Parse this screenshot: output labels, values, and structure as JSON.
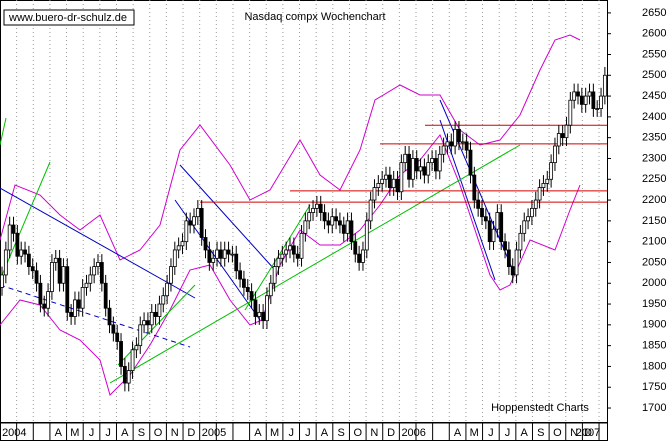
{
  "chart_data": {
    "type": "candlestick",
    "title": "Nasdaq compx Wochenchart",
    "source": "www.buero-dr-schulz.de",
    "credit": "Hoppenstedt Charts",
    "x_labels": [
      "2004",
      null,
      null,
      "A",
      "M",
      "J",
      "J",
      "A",
      "S",
      "O",
      "N",
      "D",
      "2005",
      null,
      null,
      "A",
      "M",
      "J",
      "J",
      "A",
      "S",
      "O",
      "N",
      "D",
      "2006",
      null,
      null,
      "A",
      "M",
      "J",
      "J",
      "A",
      "S",
      "O",
      "N",
      "D",
      "2007"
    ],
    "ylim": [
      1664,
      2681
    ],
    "yticks": [
      1700,
      1750,
      1800,
      1850,
      1900,
      1950,
      2000,
      2050,
      2100,
      2150,
      2200,
      2250,
      2300,
      2350,
      2400,
      2450,
      2500,
      2550,
      2600,
      2650
    ],
    "levels": [
      2380,
      2335,
      2222,
      2195
    ],
    "open": [
      1990,
      2020,
      2080,
      2140,
      2120,
      2065,
      2080,
      2070,
      2040,
      2030,
      2000,
      1950,
      1940,
      1980,
      2050,
      2060,
      2000,
      2040,
      1930,
      1920,
      1960,
      1940,
      1990,
      2000,
      2020,
      2040,
      2050,
      2000,
      1940,
      1900,
      1880,
      1860,
      1800,
      1760,
      1790,
      1840,
      1850,
      1900,
      1910,
      1900,
      1930,
      1920,
      1950,
      1970,
      2000,
      2040,
      2080,
      2090,
      2100,
      2150,
      2140,
      2160,
      2180,
      2110,
      2080,
      2050,
      2060,
      2080,
      2060,
      2080,
      2070,
      2070,
      2030,
      2010,
      1990,
      1980,
      1960,
      1920,
      1930,
      1910,
      1970,
      2000,
      2040,
      2060,
      2070,
      2080,
      2090,
      2070,
      2060,
      2120,
      2150,
      2170,
      2180,
      2190,
      2170,
      2150,
      2140,
      2160,
      2150,
      2140,
      2120,
      2150,
      2100,
      2070,
      2050,
      2080,
      2150,
      2200,
      2230,
      2240,
      2250,
      2260,
      2230,
      2250,
      2220,
      2290,
      2310,
      2250,
      2300,
      2270,
      2280,
      2260,
      2290,
      2300,
      2270,
      2310,
      2330,
      2340,
      2330,
      2370,
      2340,
      2340,
      2320,
      2260,
      2200,
      2180,
      2160,
      2150,
      2100,
      2130,
      2170,
      2100,
      2080,
      2040,
      2020,
      2080,
      2120,
      2150,
      2160,
      2180,
      2200,
      2230,
      2240,
      2250,
      2290,
      2330,
      2360,
      2350,
      2380,
      2440,
      2460,
      2450,
      2430,
      2450,
      2460,
      2420,
      2420,
      2450
    ],
    "high": [
      2040,
      2100,
      2160,
      2160,
      2140,
      2100,
      2100,
      2090,
      2060,
      2050,
      2020,
      1970,
      2000,
      2070,
      2080,
      2080,
      2060,
      2060,
      1950,
      1980,
      1980,
      2010,
      2020,
      2040,
      2060,
      2070,
      2070,
      2020,
      1960,
      1920,
      1900,
      1880,
      1820,
      1810,
      1860,
      1870,
      1920,
      1930,
      1930,
      1950,
      1950,
      1970,
      1990,
      2020,
      2060,
      2100,
      2110,
      2120,
      2170,
      2170,
      2180,
      2200,
      2200,
      2130,
      2100,
      2080,
      2100,
      2100,
      2100,
      2100,
      2090,
      2090,
      2050,
      2030,
      2010,
      2000,
      1980,
      1950,
      1950,
      1990,
      2020,
      2060,
      2080,
      2090,
      2100,
      2110,
      2110,
      2090,
      2140,
      2170,
      2190,
      2200,
      2210,
      2210,
      2190,
      2170,
      2180,
      2180,
      2170,
      2160,
      2170,
      2170,
      2120,
      2090,
      2100,
      2170,
      2220,
      2250,
      2260,
      2270,
      2280,
      2280,
      2270,
      2270,
      2310,
      2330,
      2330,
      2320,
      2320,
      2300,
      2300,
      2310,
      2320,
      2320,
      2330,
      2350,
      2360,
      2360,
      2390,
      2390,
      2360,
      2360,
      2340,
      2280,
      2220,
      2200,
      2180,
      2170,
      2150,
      2190,
      2190,
      2120,
      2100,
      2060,
      2100,
      2140,
      2170,
      2180,
      2200,
      2220,
      2250,
      2260,
      2270,
      2310,
      2350,
      2380,
      2380,
      2400,
      2460,
      2480,
      2480,
      2470,
      2470,
      2480,
      2480,
      2440,
      2470,
      2520
    ],
    "low": [
      1970,
      2000,
      2060,
      2100,
      2045,
      2045,
      2050,
      2020,
      2010,
      1980,
      1930,
      1920,
      1920,
      1960,
      2030,
      1980,
      1980,
      1910,
      1900,
      1900,
      1920,
      1920,
      1970,
      1980,
      2000,
      2020,
      1980,
      1920,
      1880,
      1860,
      1840,
      1780,
      1740,
      1740,
      1770,
      1820,
      1830,
      1880,
      1880,
      1880,
      1900,
      1900,
      1930,
      1950,
      1980,
      2020,
      2060,
      2070,
      2080,
      2120,
      2120,
      2140,
      2090,
      2060,
      2030,
      2030,
      2040,
      2040,
      2040,
      2050,
      2050,
      2010,
      1990,
      1970,
      1960,
      1940,
      1900,
      1900,
      1890,
      1890,
      1950,
      1980,
      2020,
      2040,
      2050,
      2060,
      2050,
      2040,
      2040,
      2100,
      2130,
      2150,
      2160,
      2150,
      2130,
      2120,
      2120,
      2130,
      2120,
      2100,
      2100,
      2080,
      2050,
      2030,
      2030,
      2060,
      2130,
      2180,
      2210,
      2220,
      2230,
      2210,
      2210,
      2200,
      2200,
      2270,
      2230,
      2230,
      2250,
      2250,
      2240,
      2240,
      2270,
      2250,
      2250,
      2290,
      2310,
      2310,
      2310,
      2320,
      2320,
      2300,
      2240,
      2180,
      2160,
      2140,
      2130,
      2080,
      2080,
      2110,
      2080,
      2060,
      2020,
      2000,
      2000,
      2060,
      2100,
      2130,
      2140,
      2160,
      2180,
      2210,
      2220,
      2230,
      2270,
      2310,
      2330,
      2330,
      2360,
      2420,
      2430,
      2410,
      2410,
      2430,
      2400,
      2400,
      2400,
      2430
    ],
    "close": [
      2020,
      2080,
      2140,
      2120,
      2065,
      2080,
      2070,
      2040,
      2030,
      2000,
      1950,
      1940,
      1980,
      2050,
      2060,
      2000,
      2040,
      1930,
      1920,
      1960,
      1940,
      1990,
      2000,
      2020,
      2040,
      2050,
      2000,
      1940,
      1900,
      1880,
      1860,
      1800,
      1760,
      1790,
      1840,
      1850,
      1900,
      1910,
      1900,
      1930,
      1920,
      1950,
      1970,
      2000,
      2040,
      2080,
      2090,
      2100,
      2150,
      2140,
      2160,
      2180,
      2110,
      2080,
      2050,
      2060,
      2080,
      2060,
      2080,
      2070,
      2070,
      2030,
      2010,
      1990,
      1980,
      1960,
      1920,
      1930,
      1910,
      1970,
      2000,
      2040,
      2060,
      2070,
      2080,
      2090,
      2070,
      2060,
      2120,
      2150,
      2170,
      2180,
      2190,
      2170,
      2150,
      2140,
      2160,
      2150,
      2140,
      2120,
      2150,
      2100,
      2070,
      2050,
      2080,
      2150,
      2200,
      2230,
      2240,
      2250,
      2260,
      2230,
      2250,
      2220,
      2290,
      2310,
      2250,
      2300,
      2270,
      2280,
      2260,
      2290,
      2300,
      2270,
      2310,
      2330,
      2340,
      2330,
      2370,
      2340,
      2340,
      2320,
      2260,
      2200,
      2180,
      2160,
      2150,
      2100,
      2130,
      2170,
      2100,
      2080,
      2040,
      2020,
      2080,
      2120,
      2150,
      2160,
      2180,
      2200,
      2230,
      2240,
      2250,
      2290,
      2330,
      2360,
      2350,
      2380,
      2440,
      2460,
      2450,
      2430,
      2450,
      2460,
      2420,
      2420,
      2450,
      2500
    ]
  }
}
